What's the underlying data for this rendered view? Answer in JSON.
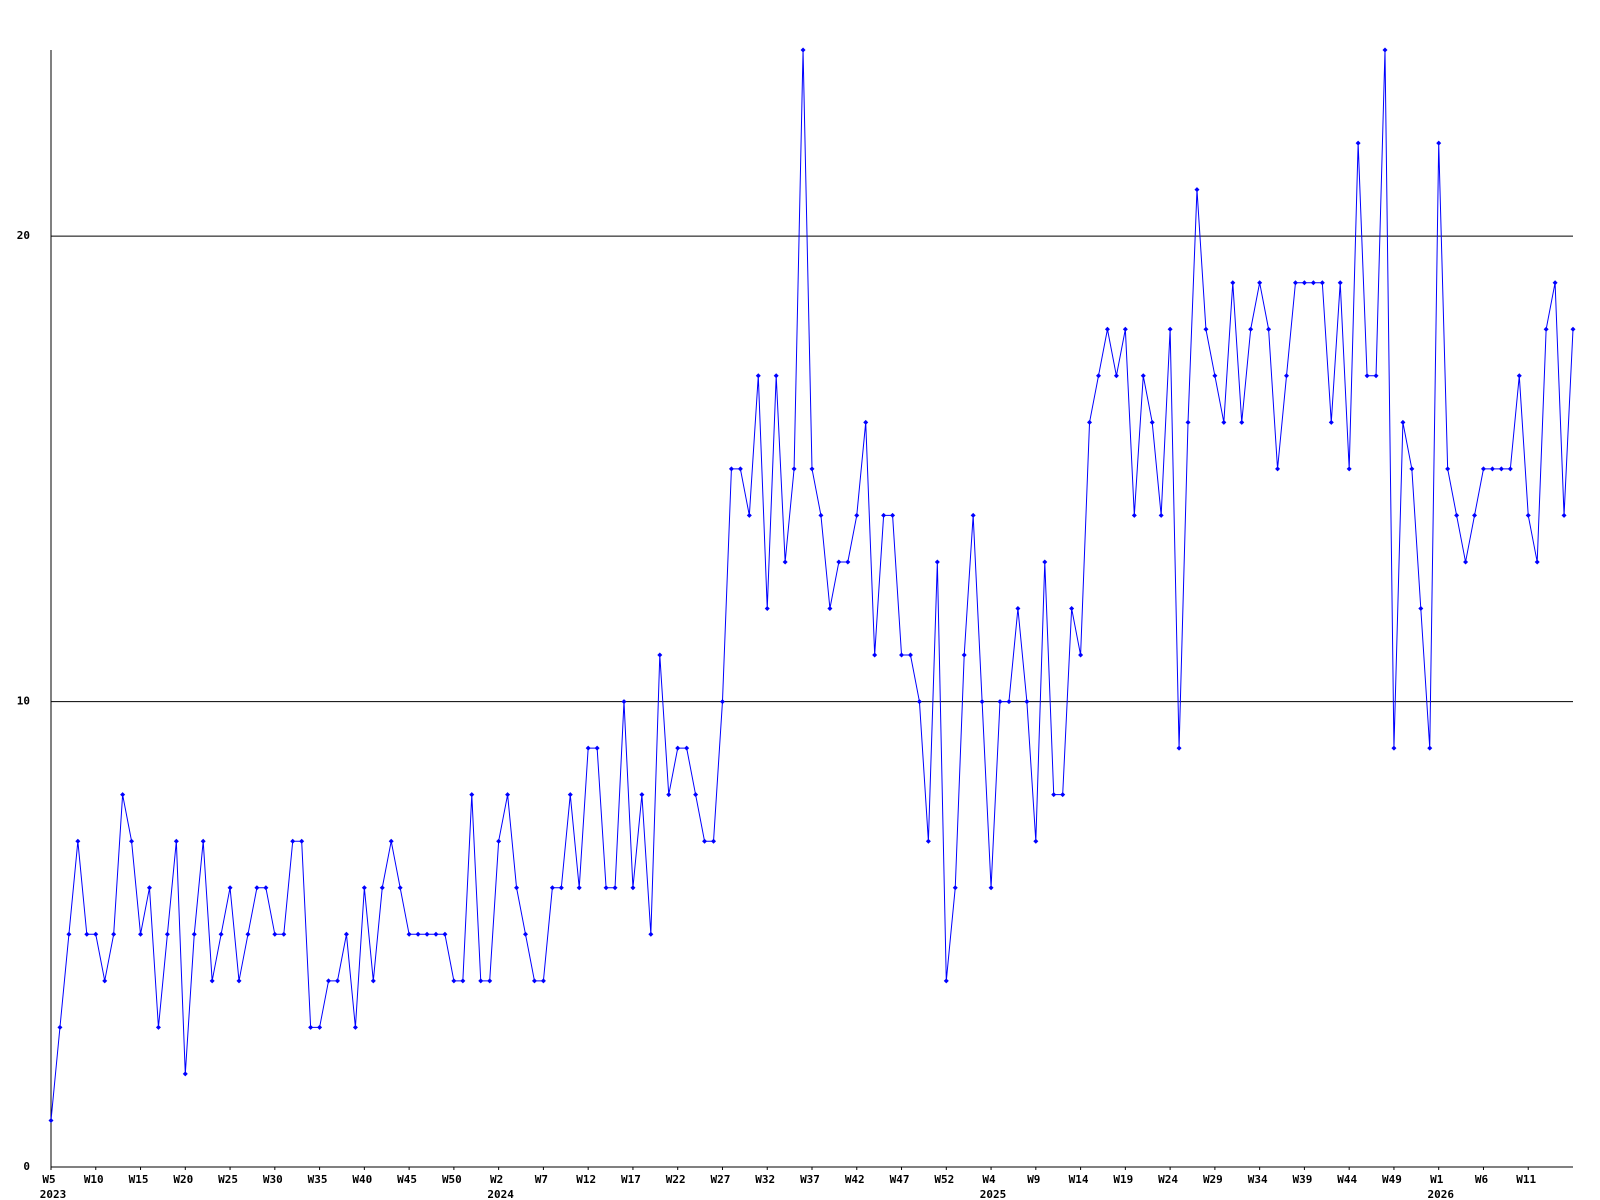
{
  "chart_data": {
    "type": "line",
    "color": "#0000ff",
    "grid": true,
    "markers": true,
    "ylim": [
      0,
      24
    ],
    "yticks": [
      0,
      10,
      20
    ],
    "categories": [
      "W5",
      null,
      null,
      null,
      null,
      "W10",
      null,
      null,
      null,
      null,
      "W15",
      null,
      null,
      null,
      null,
      "W20",
      null,
      null,
      null,
      null,
      "W25",
      null,
      null,
      null,
      null,
      "W30",
      null,
      null,
      null,
      null,
      "W35",
      null,
      null,
      null,
      null,
      "W40",
      null,
      null,
      null,
      null,
      "W45",
      null,
      null,
      null,
      null,
      "W50",
      null,
      null,
      null,
      null,
      "W2",
      null,
      null,
      null,
      null,
      "W7",
      null,
      null,
      null,
      null,
      "W12",
      null,
      null,
      null,
      null,
      "W17",
      null,
      null,
      null,
      null,
      "W22",
      null,
      null,
      null,
      null,
      "W27",
      null,
      null,
      null,
      null,
      "W32",
      null,
      null,
      null,
      null,
      "W37",
      null,
      null,
      null,
      null,
      "W42",
      null,
      null,
      null,
      null,
      "W47",
      null,
      null,
      null,
      null,
      "W52",
      null,
      null,
      null,
      null,
      "W4",
      null,
      null,
      null,
      null,
      "W9",
      null,
      null,
      null,
      null,
      "W14",
      null,
      null,
      null,
      null,
      "W19",
      null,
      null,
      null,
      null,
      "W24",
      null,
      null,
      null,
      null,
      "W29",
      null,
      null,
      null,
      null,
      "W34",
      null,
      null,
      null,
      null,
      "W39",
      null,
      null,
      null,
      null,
      "W44",
      null,
      null,
      null,
      null,
      "W49",
      null,
      null,
      null,
      null,
      "W1",
      null,
      null,
      null,
      null,
      "W6",
      null,
      null,
      null,
      null,
      "W11",
      null,
      null,
      null,
      null,
      null
    ],
    "category_groups": [
      "2023",
      null,
      null,
      null,
      null,
      null,
      null,
      null,
      null,
      null,
      null,
      null,
      null,
      null,
      null,
      null,
      null,
      null,
      null,
      null,
      null,
      null,
      null,
      null,
      null,
      null,
      null,
      null,
      null,
      null,
      null,
      null,
      null,
      null,
      null,
      null,
      null,
      null,
      null,
      null,
      null,
      null,
      null,
      null,
      null,
      null,
      null,
      null,
      null,
      null,
      "2024",
      null,
      null,
      null,
      null,
      null,
      null,
      null,
      null,
      null,
      null,
      null,
      null,
      null,
      null,
      null,
      null,
      null,
      null,
      null,
      null,
      null,
      null,
      null,
      null,
      null,
      null,
      null,
      null,
      null,
      null,
      null,
      null,
      null,
      null,
      null,
      null,
      null,
      null,
      null,
      null,
      null,
      null,
      null,
      null,
      null,
      null,
      null,
      null,
      null,
      null,
      null,
      null,
      null,
      null,
      "2025",
      null,
      null,
      null,
      null,
      null,
      null,
      null,
      null,
      null,
      null,
      null,
      null,
      null,
      null,
      null,
      null,
      null,
      null,
      null,
      null,
      null,
      null,
      null,
      null,
      null,
      null,
      null,
      null,
      null,
      null,
      null,
      null,
      null,
      null,
      null,
      null,
      null,
      null,
      null,
      null,
      null,
      null,
      null,
      null,
      null,
      null,
      null,
      null,
      null,
      "2026",
      null,
      null,
      null,
      null,
      null,
      null,
      null,
      null,
      null,
      null,
      null,
      null,
      null,
      null,
      null
    ],
    "values": [
      1,
      3,
      5,
      7,
      5,
      5,
      4,
      5,
      8,
      7,
      5,
      6,
      3,
      5,
      7,
      2,
      5,
      7,
      4,
      5,
      6,
      4,
      5,
      6,
      6,
      5,
      5,
      7,
      7,
      3,
      3,
      4,
      4,
      5,
      3,
      6,
      4,
      6,
      7,
      6,
      5,
      5,
      5,
      5,
      5,
      4,
      4,
      8,
      4,
      4,
      7,
      8,
      6,
      5,
      4,
      4,
      6,
      6,
      8,
      6,
      9,
      9,
      6,
      6,
      10,
      6,
      8,
      5,
      11,
      8,
      9,
      9,
      8,
      7,
      7,
      10,
      15,
      15,
      14,
      17,
      12,
      17,
      13,
      15,
      24,
      15,
      14,
      12,
      13,
      13,
      14,
      16,
      11,
      14,
      14,
      11,
      11,
      10,
      7,
      13,
      4,
      6,
      11,
      14,
      10,
      6,
      10,
      10,
      12,
      10,
      7,
      13,
      8,
      8,
      12,
      11,
      16,
      17,
      18,
      17,
      18,
      14,
      17,
      16,
      14,
      18,
      9,
      16,
      21,
      18,
      17,
      16,
      19,
      16,
      18,
      19,
      18,
      15,
      17,
      19,
      19,
      19,
      19,
      16,
      19,
      15,
      22,
      17,
      17,
      24,
      9,
      16,
      15,
      12,
      9,
      22,
      15,
      14,
      13,
      14,
      15,
      15,
      15,
      15,
      17,
      14,
      13,
      18,
      19,
      14,
      18
    ]
  }
}
